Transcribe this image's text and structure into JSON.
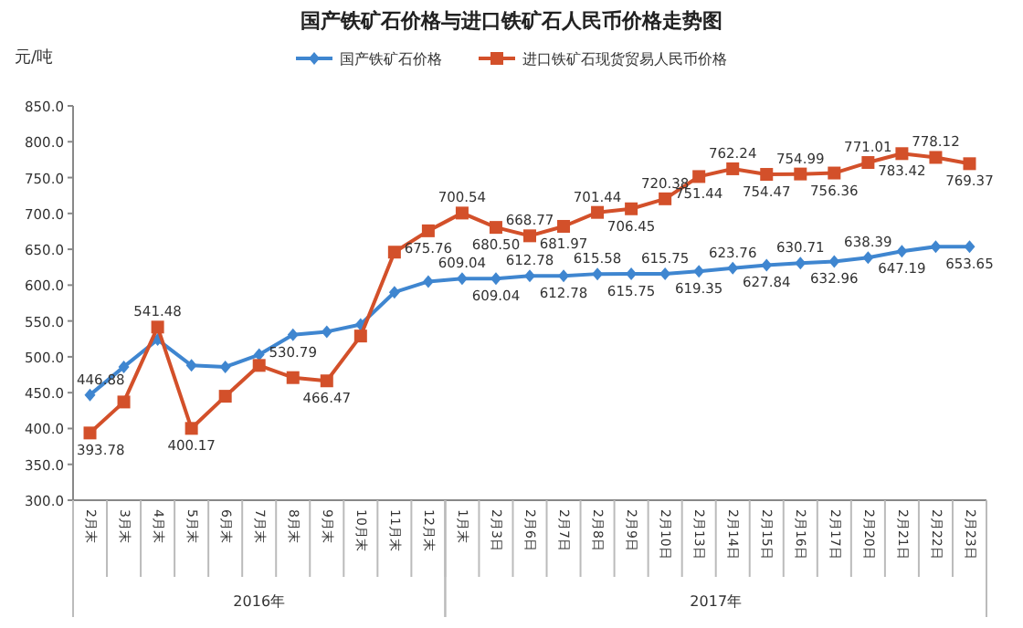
{
  "chart_data": {
    "type": "line",
    "title": "国产铁矿石价格与进口铁矿石人民币价格走势图",
    "ylabel": "元/吨",
    "categories": [
      "2月末",
      "3月末",
      "4月末",
      "5月末",
      "6月末",
      "7月末",
      "8月末",
      "9月末",
      "10月末",
      "11月末",
      "12月末",
      "1月末",
      "2月3日",
      "2月6日",
      "2月7日",
      "2月8日",
      "2月9日",
      "2月10日",
      "2月13日",
      "2月14日",
      "2月15日",
      "2月16日",
      "2月17日",
      "2月20日",
      "2月21日",
      "2月22日",
      "2月23日"
    ],
    "annotations": [
      "2016年",
      "2017年"
    ],
    "ylim": [
      300,
      850
    ],
    "yticks": [
      {
        "value": 300,
        "label": "300.0"
      },
      {
        "value": 350,
        "label": "350.0"
      },
      {
        "value": 400,
        "label": "400.0"
      },
      {
        "value": 450,
        "label": "450.0"
      },
      {
        "value": 500,
        "label": "500.0"
      },
      {
        "value": 550,
        "label": "550.0"
      },
      {
        "value": 600,
        "label": "600.0"
      },
      {
        "value": 650,
        "label": "650.0"
      },
      {
        "value": 700,
        "label": "700.0"
      },
      {
        "value": 750,
        "label": "750.0"
      },
      {
        "value": 800,
        "label": "800.0"
      },
      {
        "value": 850,
        "label": "850.0"
      }
    ],
    "grid": false,
    "legend": "top",
    "series": [
      {
        "name": "国产铁矿石价格",
        "color": "#3f86d0",
        "marker": "diamond",
        "values": [
          446.88,
          486,
          524,
          488,
          486,
          503,
          530.79,
          535,
          545,
          590,
          605,
          609.04,
          609.04,
          612.78,
          612.78,
          615.58,
          615.75,
          615.75,
          619.35,
          623.76,
          627.84,
          630.71,
          632.96,
          638.39,
          647.19,
          653.65,
          653.65
        ],
        "value_labels": [
          "446.88",
          null,
          null,
          null,
          null,
          null,
          "530.79",
          null,
          null,
          null,
          null,
          "609.04",
          "609.04",
          "612.78",
          "612.78",
          "615.58",
          "615.75",
          "615.75",
          "619.35",
          "623.76",
          "627.84",
          "630.71",
          "632.96",
          "638.39",
          "647.19",
          null,
          "653.65"
        ]
      },
      {
        "name": "进口铁矿石现货贸易人民币价格",
        "color": "#d3502a",
        "marker": "square",
        "values": [
          393.78,
          437,
          541.48,
          400.17,
          445,
          488,
          471,
          466.47,
          529,
          646,
          675.76,
          700.54,
          680.5,
          668.77,
          681.97,
          701.44,
          706.45,
          720.38,
          751.44,
          762.24,
          754.47,
          754.99,
          756.36,
          771.01,
          783.42,
          778.12,
          769.37
        ],
        "value_labels": [
          "393.78",
          null,
          "541.48",
          "400.17",
          null,
          null,
          null,
          "466.47",
          null,
          null,
          "675.76",
          "700.54",
          "680.50",
          "668.77",
          "681.97",
          "701.44",
          "706.45",
          "720.38",
          "751.44",
          "762.24",
          "754.47",
          "754.99",
          "756.36",
          "771.01",
          "783.42",
          "778.12",
          "769.37"
        ]
      }
    ]
  }
}
